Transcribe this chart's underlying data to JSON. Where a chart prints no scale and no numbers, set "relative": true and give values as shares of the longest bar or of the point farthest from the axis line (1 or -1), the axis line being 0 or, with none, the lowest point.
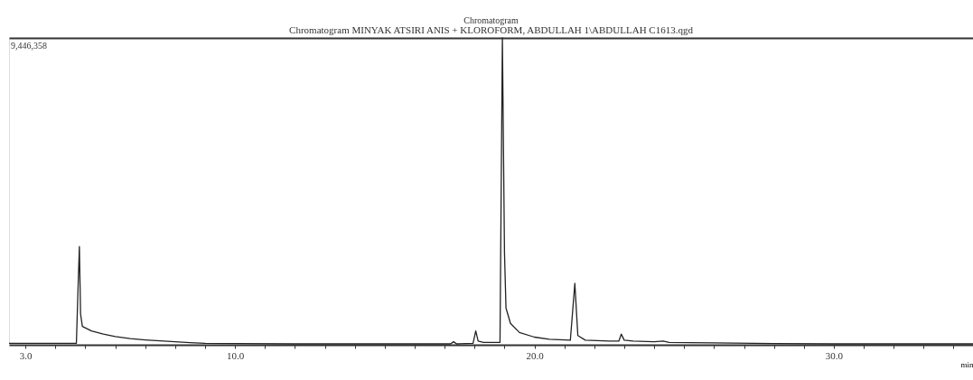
{
  "chart_data": {
    "type": "line",
    "title": "Chromatogram",
    "subtitle": "Chromatogram MINYAK ATSIRI ANIS + KLOROFORM, ABDULLAH 1\\ABDULLAH C1613.qgd",
    "xlabel": "min",
    "annotations": [
      "9,446,358"
    ],
    "relative": true,
    "grid": false,
    "legend": false,
    "marker": "none",
    "line_style": "solid",
    "xlim": [
      2.45,
      34.65
    ],
    "xticks": [
      {
        "value": 3,
        "label": "3.0"
      },
      {
        "value": 4,
        "label": null
      },
      {
        "value": 5,
        "label": null
      },
      {
        "value": 6,
        "label": null
      },
      {
        "value": 7,
        "label": null
      },
      {
        "value": 8,
        "label": null
      },
      {
        "value": 9,
        "label": null
      },
      {
        "value": 10,
        "label": "10.0"
      },
      {
        "value": 11,
        "label": null
      },
      {
        "value": 12,
        "label": null
      },
      {
        "value": 13,
        "label": null
      },
      {
        "value": 14,
        "label": null
      },
      {
        "value": 15,
        "label": null
      },
      {
        "value": 16,
        "label": null
      },
      {
        "value": 17,
        "label": null
      },
      {
        "value": 18,
        "label": null
      },
      {
        "value": 19,
        "label": null
      },
      {
        "value": 20,
        "label": "20.0"
      },
      {
        "value": 21,
        "label": null
      },
      {
        "value": 22,
        "label": null
      },
      {
        "value": 23,
        "label": null
      },
      {
        "value": 24,
        "label": null
      },
      {
        "value": 25,
        "label": null
      },
      {
        "value": 26,
        "label": null
      },
      {
        "value": 27,
        "label": null
      },
      {
        "value": 28,
        "label": null
      },
      {
        "value": 29,
        "label": null
      },
      {
        "value": 30,
        "label": "30.0"
      },
      {
        "value": 31,
        "label": null
      },
      {
        "value": 32,
        "label": null
      },
      {
        "value": 33,
        "label": null
      },
      {
        "value": 34,
        "label": null
      }
    ],
    "series": [
      {
        "color": "#222222",
        "x": [
          2.45,
          4.7,
          4.76,
          4.8,
          4.84,
          4.9,
          5.2,
          5.6,
          6.0,
          6.5,
          7.0,
          7.5,
          8.0,
          8.5,
          9.0,
          10,
          12,
          14,
          16,
          17.2,
          17.3,
          17.4,
          17.95,
          18.04,
          18.12,
          18.3,
          18.85,
          18.93,
          19.0,
          19.05,
          19.2,
          19.5,
          20.0,
          20.5,
          21.2,
          21.35,
          21.45,
          21.7,
          22.5,
          22.82,
          22.9,
          23.0,
          23.3,
          24.0,
          24.3,
          24.5,
          26,
          28,
          30,
          32,
          34.65
        ],
        "values": [
          0.005,
          0.005,
          0.2,
          0.32,
          0.1,
          0.06,
          0.045,
          0.035,
          0.027,
          0.02,
          0.016,
          0.013,
          0.01,
          0.007,
          0.005,
          0.004,
          0.003,
          0.003,
          0.003,
          0.003,
          0.01,
          0.003,
          0.005,
          0.045,
          0.012,
          0.008,
          0.008,
          1.0,
          0.3,
          0.12,
          0.07,
          0.04,
          0.025,
          0.018,
          0.015,
          0.2,
          0.03,
          0.015,
          0.012,
          0.012,
          0.035,
          0.015,
          0.012,
          0.01,
          0.012,
          0.008,
          0.006,
          0.004,
          0.003,
          0.003,
          0.003
        ]
      }
    ]
  }
}
